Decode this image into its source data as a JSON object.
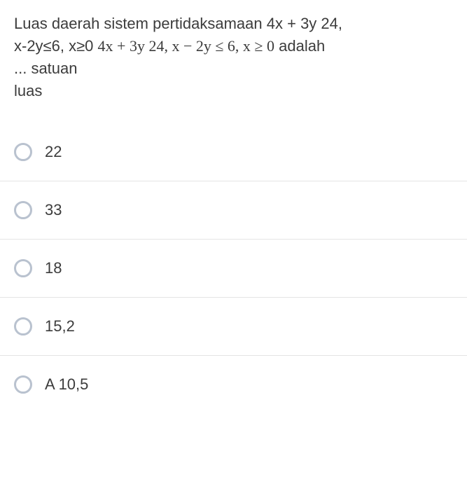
{
  "question": {
    "line1_part1": "Luas daerah sistem pertidaksamaan 4x + 3y 24,",
    "line2_part1": "x-2y≤6, x≥0 ",
    "line2_math": "4x + 3y 24, x − 2y ≤ 6, x ≥ 0",
    "line2_part2": " adalah",
    "line3": "... satuan",
    "line4": "luas",
    "text_color": "#3c3c3c",
    "font_size": 22
  },
  "options": [
    {
      "label": "22"
    },
    {
      "label": "33"
    },
    {
      "label": "18"
    },
    {
      "label": "15,2"
    },
    {
      "label": "A 10,5"
    }
  ],
  "styling": {
    "radio_border_color": "#b9c2cf",
    "divider_color": "#e4e4e4",
    "background": "#ffffff"
  }
}
